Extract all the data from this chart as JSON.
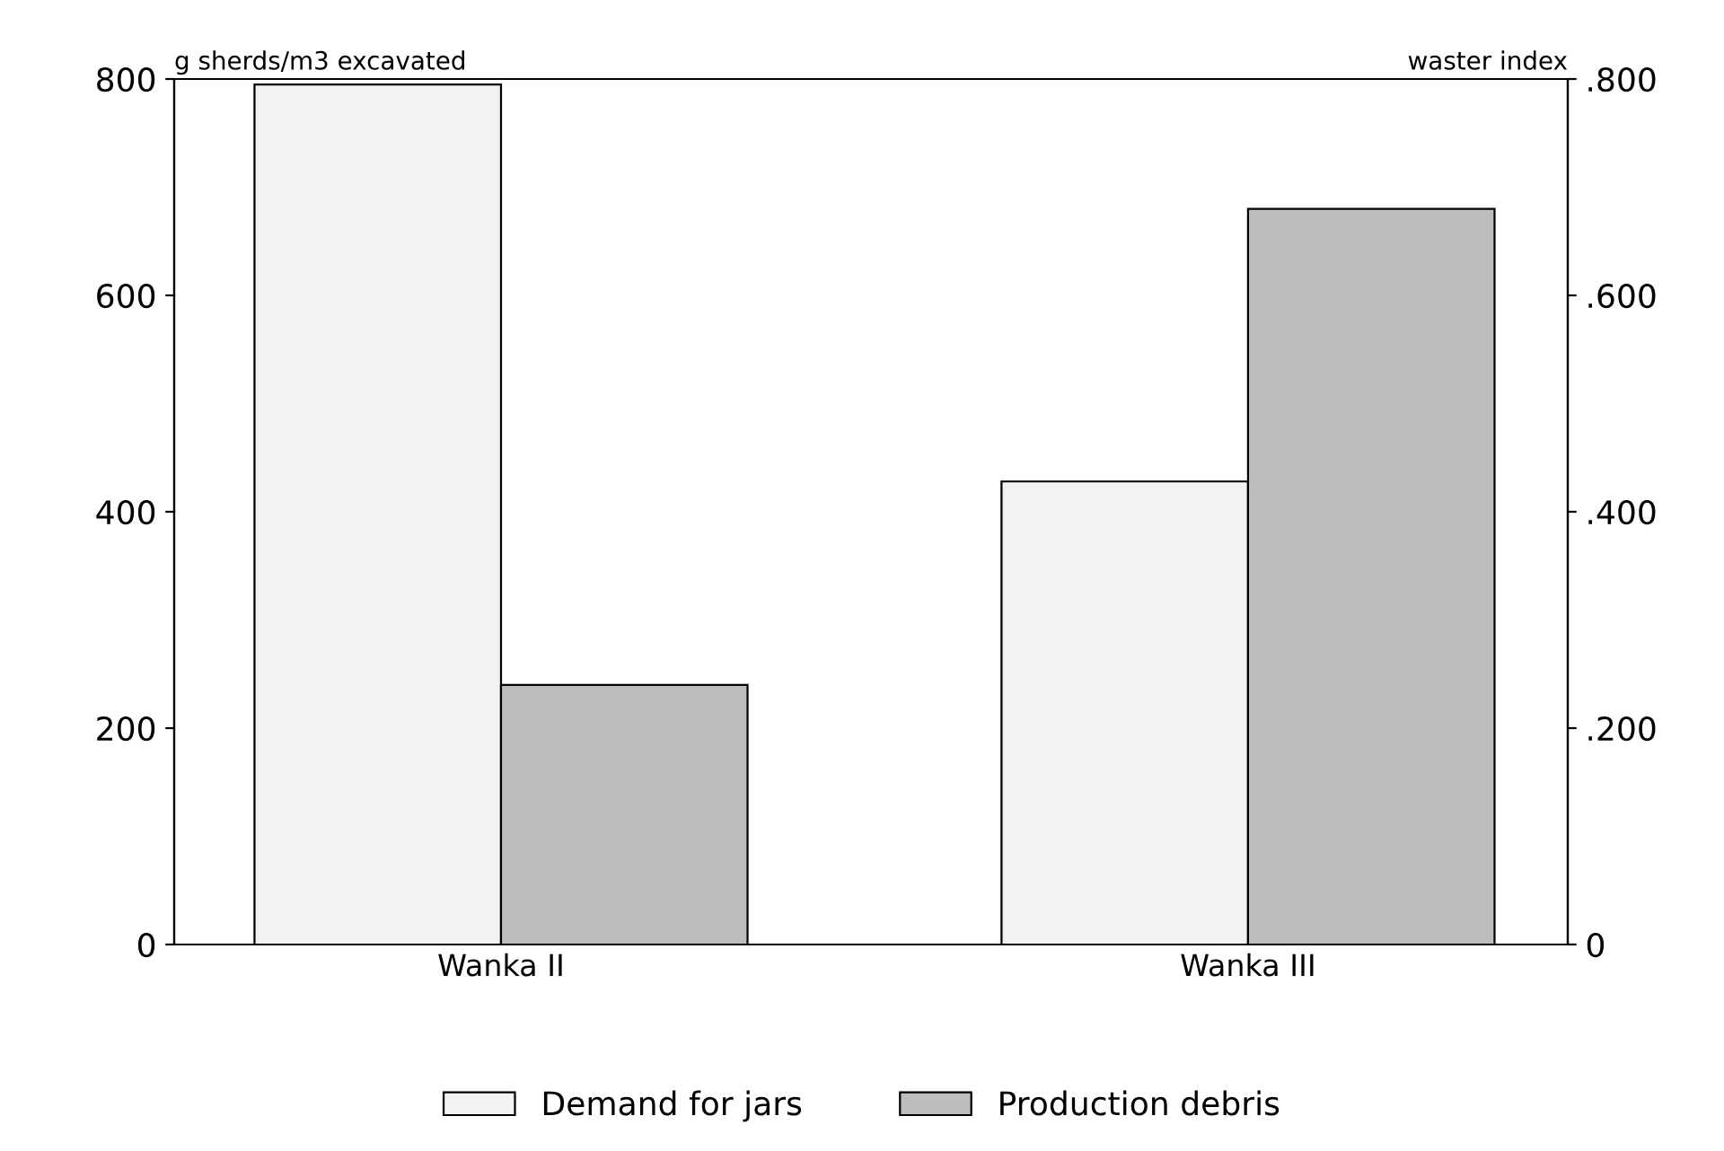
{
  "chart_data": {
    "type": "bar",
    "categories": [
      "Wanka II",
      "Wanka III"
    ],
    "ylabel": "g sherds/m3 excavated",
    "y2label": "waster index",
    "series": [
      {
        "name": "Demand for jars",
        "color": "#f2f2f2",
        "values": [
          795,
          428
        ]
      },
      {
        "name": "Production debris",
        "color": "#bdbdbd",
        "values": [
          0.24,
          0.68
        ],
        "axis": "y2"
      }
    ],
    "ylim": [
      0,
      800
    ],
    "yticks": [
      0,
      200,
      400,
      600,
      800
    ],
    "y2lim": [
      0,
      0.8
    ],
    "y2ticks": [
      0,
      {
        "value": 0.2,
        "label": ".200"
      },
      {
        "value": 0.4,
        "label": ".400"
      },
      {
        "value": 0.6,
        "label": ".600"
      },
      {
        "value": 0.8,
        "label": ".800"
      }
    ],
    "grid": false,
    "legend": "bottom"
  }
}
